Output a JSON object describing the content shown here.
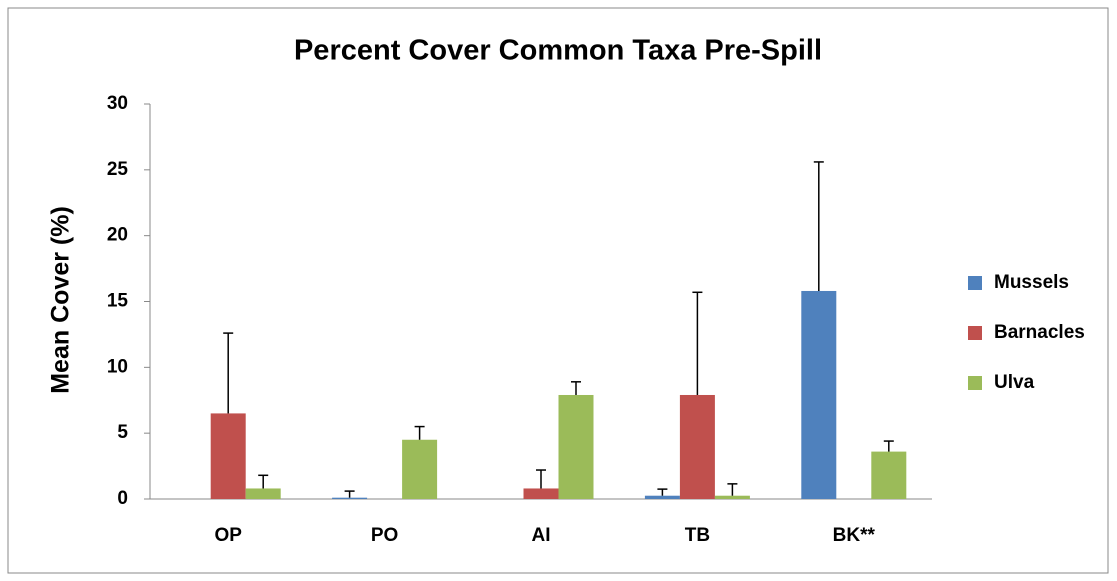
{
  "chart_data": {
    "type": "bar",
    "title": "Percent Cover Common Taxa Pre-Spill",
    "y_label": "Mean Cover (%)",
    "categories": [
      "OP",
      "PO",
      "AI",
      "TB",
      "BK**"
    ],
    "series": [
      {
        "name": "Mussels",
        "color": "#4f81bd",
        "values": [
          0,
          0.1,
          0,
          0.25,
          15.8
        ],
        "errors": [
          null,
          0.5,
          null,
          0.5,
          9.8
        ]
      },
      {
        "name": "Barnacles",
        "color": "#c0504d",
        "values": [
          6.5,
          0,
          0.8,
          7.9,
          0
        ],
        "errors": [
          6.1,
          null,
          1.4,
          7.8,
          null
        ]
      },
      {
        "name": "Ulva",
        "color": "#9bbb59",
        "values": [
          0.8,
          4.5,
          7.9,
          0.25,
          3.6
        ],
        "errors": [
          1,
          1,
          1,
          0.9,
          0.8
        ]
      }
    ],
    "ylim": [
      0,
      30
    ],
    "yticks": [
      0,
      5,
      10,
      15,
      20,
      25,
      30
    ],
    "grid": false,
    "legend": "right"
  }
}
